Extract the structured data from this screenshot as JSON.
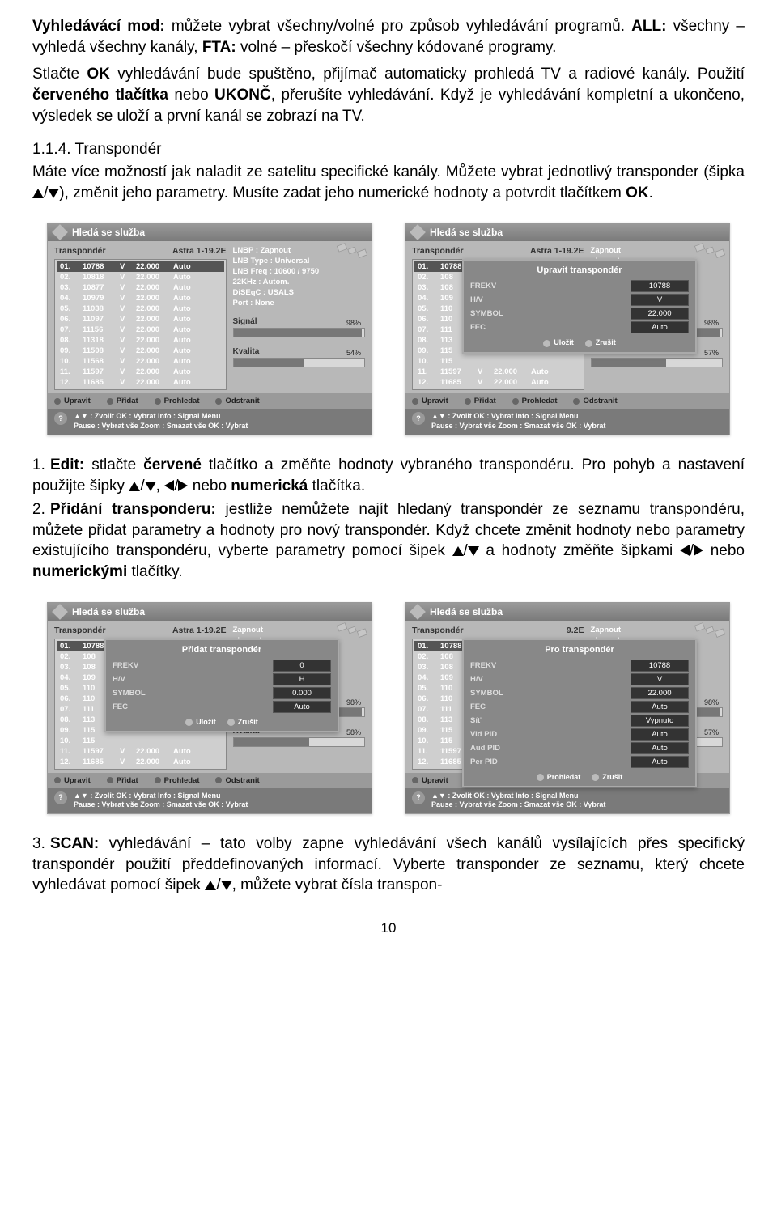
{
  "text": {
    "p1_part1": "Vyhledávácí mod:",
    "p1_part2": " můžete vybrat všechny/volné pro způsob vyhledávání programů. ",
    "p1_part3": "ALL:",
    "p1_part4": " všechny – vyhledá všechny kanály, ",
    "p1_part5": "FTA:",
    "p1_part6": " volné – přeskočí všechny kódované programy.",
    "p2_part1": "Stlačte ",
    "p2_part2": "OK",
    "p2_part3": " vyhledávání bude spuštěno, přijímač automaticky prohledá TV a radiové kanály. Použití ",
    "p2_part4": "červeného tlačítka",
    "p2_part5": " nebo ",
    "p2_part6": "UKONČ",
    "p2_part7": ", přerušíte vyhledávání. Když je vyhledávání kompletní a ukončeno, výsledek se uloží a první kanál se zobrazí na TV.",
    "h114": "1.1.4. Transpondér",
    "p3_part1": "Máte více možností jak naladit ze satelitu specifické kanály. Můžete vybrat jednotlivý transponder (šipka ",
    "p3_part2": "), změnit jeho parametry. Musíte zadat jeho numerické hodnoty a potvrdit tlačítkem ",
    "p3_part3": "OK",
    "p3_part4": ".",
    "li1_num": "1.",
    "li1_a": "Edit:",
    "li1_b": " stlačte ",
    "li1_c": "červené",
    "li1_d": " tlačítko a změňte hodnoty vybraného transpondéru. Pro pohyb a nastavení použijte šipky ",
    "li1_e": ", ",
    "li1_f": " nebo ",
    "li1_g": "numerická",
    "li1_h": " tlačítka.",
    "li2_num": "2.",
    "li2_a": "Přidání transponderu:",
    "li2_b": " jestliže nemůžete najít hledaný transpondér ze seznamu transpondéru, můžete přidat parametry a hodnoty pro nový transpondér. Když chcete změnit hodnoty nebo parametry existujícího transpondéru, vyberte parametry pomocí šipek ",
    "li2_c": " a hodnoty změňte šipkami ",
    "li2_d": " nebo ",
    "li2_e": "numerickými",
    "li2_f": " tlačítky.",
    "li3_num": "3.",
    "li3_a": "SCAN:",
    "li3_b": " vyhledávání – tato volby zapne vyhledávání všech kanálů vysílajících přes specifický transpondér použití předdefinovaných informací. Vyberte transponder ze seznamu, který chcete vyhledávat pomocí šipek ",
    "li3_c": ", můžete vybrat čísla transpon-"
  },
  "page_number": "10",
  "screenshots": {
    "common": {
      "title": "Hledá se služba",
      "left_header": "Transpondér",
      "right_header": "Astra 1-19.2E",
      "help_line1": "▲▼ : Zvolit OK : Vybrat  Info : Signal Menu",
      "help_line2": "Pause : Vybrat vše  Zoom  : Smazat vše  OK : Vybrat",
      "footer": [
        "Upravit",
        "Přidat",
        "Prohledat",
        "Odstranit"
      ]
    },
    "tp_rows": [
      {
        "n": "01.",
        "f": "10788",
        "p": "V",
        "s": "22.000",
        "m": "Auto"
      },
      {
        "n": "02.",
        "f": "10818",
        "p": "V",
        "s": "22.000",
        "m": "Auto"
      },
      {
        "n": "03.",
        "f": "10877",
        "p": "V",
        "s": "22.000",
        "m": "Auto"
      },
      {
        "n": "04.",
        "f": "10979",
        "p": "V",
        "s": "22.000",
        "m": "Auto"
      },
      {
        "n": "05.",
        "f": "11038",
        "p": "V",
        "s": "22.000",
        "m": "Auto"
      },
      {
        "n": "06.",
        "f": "11097",
        "p": "V",
        "s": "22.000",
        "m": "Auto"
      },
      {
        "n": "07.",
        "f": "11156",
        "p": "V",
        "s": "22.000",
        "m": "Auto"
      },
      {
        "n": "08.",
        "f": "11318",
        "p": "V",
        "s": "22.000",
        "m": "Auto"
      },
      {
        "n": "09.",
        "f": "11508",
        "p": "V",
        "s": "22.000",
        "m": "Auto"
      },
      {
        "n": "10.",
        "f": "11568",
        "p": "V",
        "s": "22.000",
        "m": "Auto"
      },
      {
        "n": "11.",
        "f": "11597",
        "p": "V",
        "s": "22.000",
        "m": "Auto"
      },
      {
        "n": "12.",
        "f": "11685",
        "p": "V",
        "s": "22.000",
        "m": "Auto"
      }
    ],
    "info_rows": [
      "LNBP : Zapnout",
      "LNB Type : Universal",
      "LNB Freq : 10600 / 9750",
      "22KHz : Autom.",
      "DiSEqC : USALS",
      "Port : None"
    ],
    "signal_label": "Signál",
    "quality_label": "Kvalita",
    "s1": {
      "signal": 98,
      "quality": 54
    },
    "s2": {
      "signal": 98,
      "quality": 57,
      "dialog_title": "Upravit transpondér",
      "fields": [
        {
          "lbl": "FREKV",
          "val": "10788"
        },
        {
          "lbl": "H/V",
          "val": "V"
        },
        {
          "lbl": "SYMBOL",
          "val": "22.000"
        },
        {
          "lbl": "FEC",
          "val": "Auto"
        }
      ],
      "btn_save": "Uložit",
      "btn_cancel": "Zrušit"
    },
    "s3": {
      "signal": 98,
      "quality": 58,
      "dialog_title": "Přidat transpondér",
      "fields": [
        {
          "lbl": "FREKV",
          "val": "0"
        },
        {
          "lbl": "H/V",
          "val": "H"
        },
        {
          "lbl": "SYMBOL",
          "val": "0.000"
        },
        {
          "lbl": "FEC",
          "val": "Auto"
        }
      ],
      "btn_save": "Uložit",
      "btn_cancel": "Zrušit"
    },
    "s4": {
      "signal": 98,
      "quality": 57,
      "dialog_title": "Pro transpondér",
      "right_header": "9.2E",
      "fields": [
        {
          "lbl": "FREKV",
          "val": "10788"
        },
        {
          "lbl": "H/V",
          "val": "V"
        },
        {
          "lbl": "SYMBOL",
          "val": "22.000"
        },
        {
          "lbl": "FEC",
          "val": "Auto"
        },
        {
          "lbl": "Síť",
          "val": "Vypnuto"
        },
        {
          "lbl": "Vid PID",
          "val": "Auto"
        },
        {
          "lbl": "Aud PID",
          "val": "Auto"
        },
        {
          "lbl": "Per PID",
          "val": "Auto"
        }
      ],
      "btn_save": "Prohledat",
      "btn_cancel": "Zrušit"
    }
  }
}
